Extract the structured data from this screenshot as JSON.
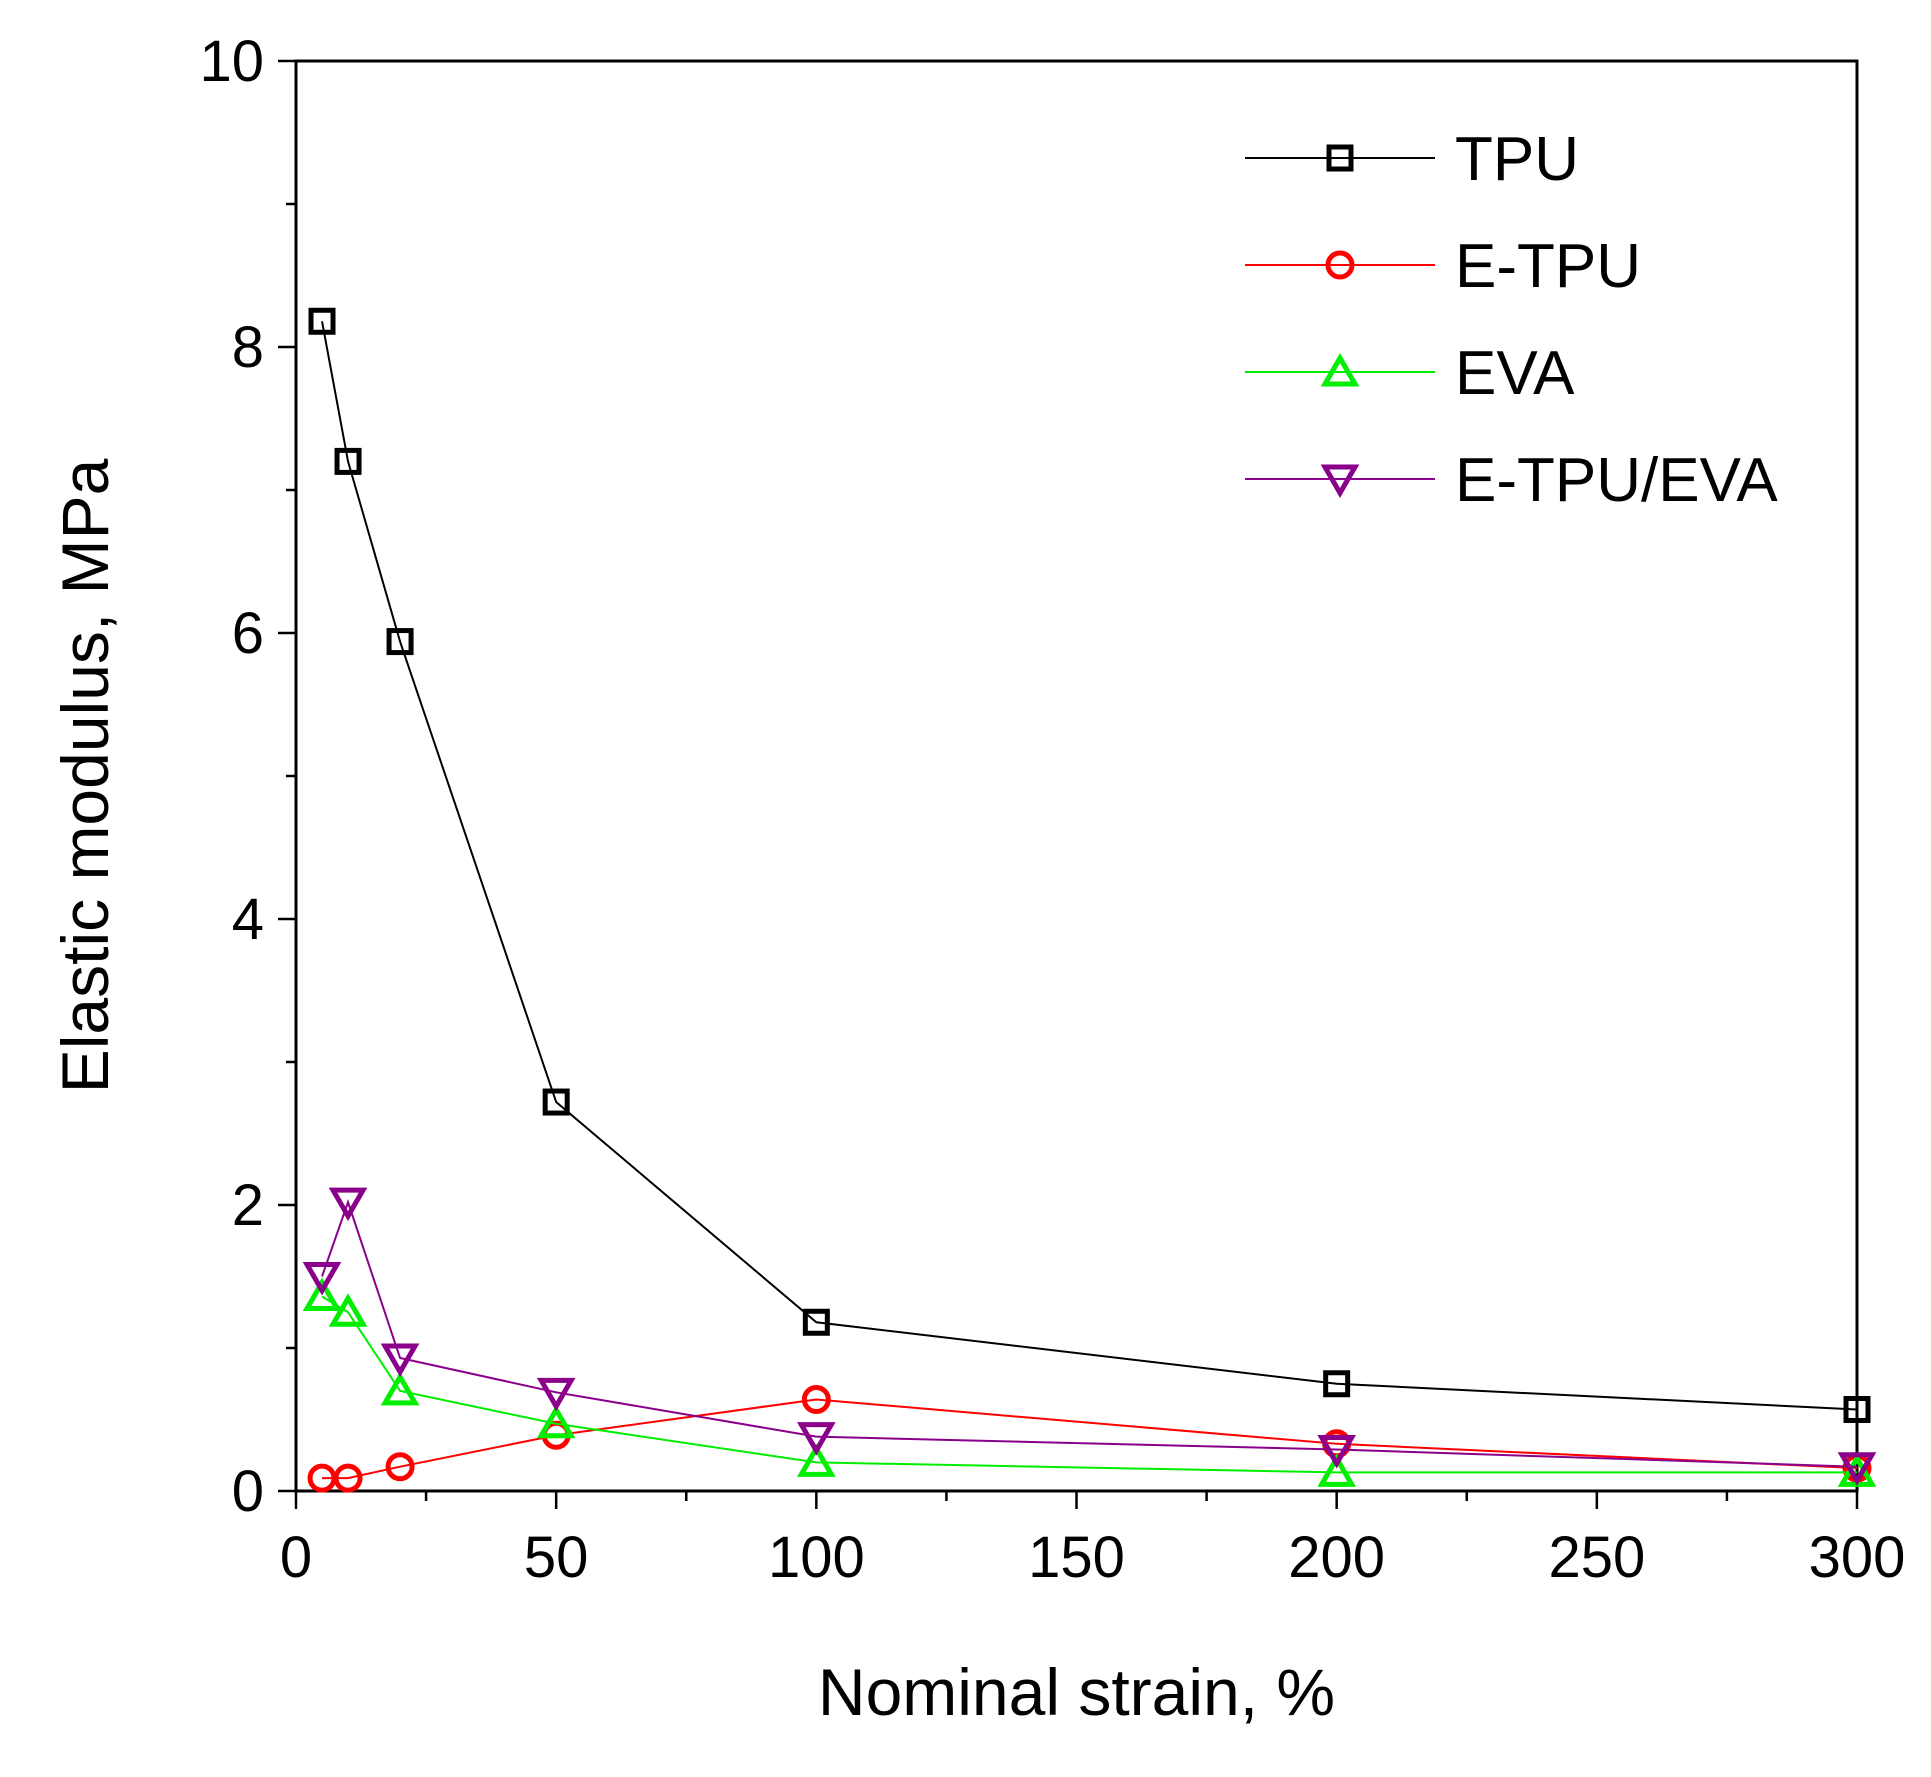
{
  "chart_data": {
    "type": "line",
    "title": "",
    "xlabel": "Nominal strain, %",
    "ylabel": "Elastic modulus, MPa",
    "xlim": [
      0,
      300
    ],
    "ylim": [
      0,
      10
    ],
    "x_ticks": [
      0,
      50,
      100,
      150,
      200,
      250,
      300
    ],
    "x_tick_labels": [
      "0",
      "50",
      "100",
      "150",
      "200",
      "250",
      "300"
    ],
    "x_minor_ticks": [
      25,
      75,
      125,
      175,
      225,
      275
    ],
    "y_ticks": [
      0,
      2,
      4,
      6,
      8,
      10
    ],
    "y_tick_labels": [
      "0",
      "2",
      "4",
      "6",
      "8",
      "10"
    ],
    "y_minor_ticks": [
      1,
      3,
      5,
      7,
      9
    ],
    "grid": false,
    "legend_position": "top-right",
    "x": [
      5,
      10,
      20,
      50,
      100,
      200,
      300
    ],
    "series": [
      {
        "name": "TPU",
        "marker": "square",
        "color": "#000000",
        "values": [
          8.18,
          7.2,
          5.94,
          2.72,
          1.18,
          0.75,
          0.57
        ]
      },
      {
        "name": "E-TPU",
        "marker": "circle",
        "color": "#ff0000",
        "values": [
          0.09,
          0.09,
          0.17,
          0.39,
          0.64,
          0.33,
          0.16
        ]
      },
      {
        "name": "EVA",
        "marker": "triangle-up",
        "color": "#00ee00",
        "values": [
          1.36,
          1.25,
          0.7,
          0.47,
          0.2,
          0.13,
          0.13
        ]
      },
      {
        "name": "E-TPU/EVA",
        "marker": "triangle-down",
        "color": "#8b008b",
        "values": [
          1.5,
          2.02,
          0.93,
          0.69,
          0.38,
          0.29,
          0.17
        ]
      }
    ]
  }
}
